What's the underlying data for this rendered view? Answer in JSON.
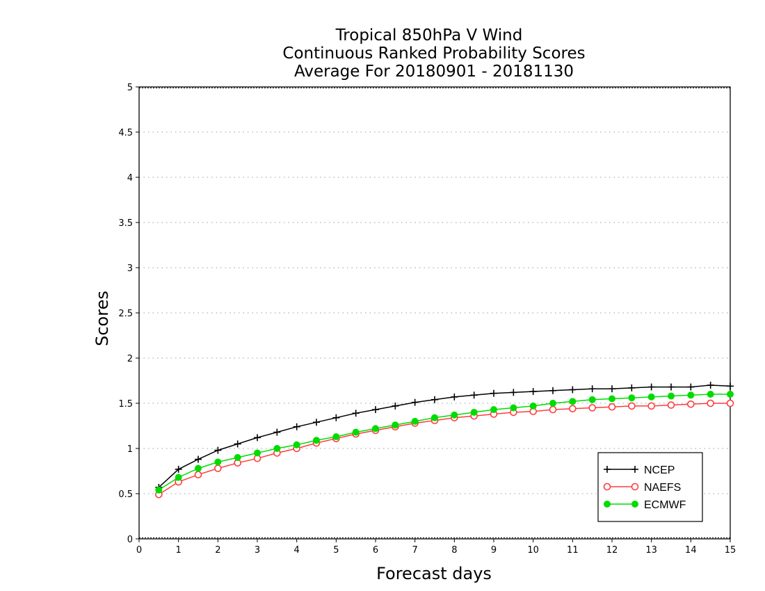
{
  "chart_data": {
    "type": "line",
    "title": [
      "Tropical 850hPa V Wind",
      "Continuous Ranked Probability Scores",
      "Average For 20180901 - 20181130"
    ],
    "xlabel": "Forecast days",
    "ylabel": "Scores",
    "xlim": [
      0,
      15
    ],
    "ylim": [
      0,
      5
    ],
    "x_ticks": [
      "0",
      "1",
      "2",
      "3",
      "4",
      "5",
      "6",
      "7",
      "8",
      "9",
      "10",
      "11",
      "12",
      "13",
      "14",
      "15"
    ],
    "y_ticks": [
      "0",
      "0.5",
      "1",
      "1.5",
      "2",
      "2.5",
      "3",
      "3.5",
      "4",
      "4.5",
      "5"
    ],
    "grid": true,
    "legend_position": "bottom-right",
    "x": [
      0.5,
      1,
      1.5,
      2,
      2.5,
      3,
      3.5,
      4,
      4.5,
      5,
      5.5,
      6,
      6.5,
      7,
      7.5,
      8,
      8.5,
      9,
      9.5,
      10,
      10.5,
      11,
      11.5,
      12,
      12.5,
      13,
      13.5,
      14,
      14.5,
      15
    ],
    "series": [
      {
        "name": "NCEP",
        "color": "#000000",
        "marker": "plus",
        "values": [
          0.57,
          0.77,
          0.88,
          0.98,
          1.05,
          1.12,
          1.18,
          1.24,
          1.29,
          1.34,
          1.39,
          1.43,
          1.47,
          1.51,
          1.54,
          1.57,
          1.59,
          1.61,
          1.62,
          1.63,
          1.64,
          1.65,
          1.66,
          1.66,
          1.67,
          1.68,
          1.68,
          1.68,
          1.7,
          1.69
        ]
      },
      {
        "name": "NAEFS",
        "color": "#ff3b3b",
        "marker": "open-circle",
        "values": [
          0.49,
          0.63,
          0.71,
          0.78,
          0.84,
          0.89,
          0.95,
          1.0,
          1.06,
          1.11,
          1.16,
          1.2,
          1.24,
          1.28,
          1.31,
          1.34,
          1.36,
          1.38,
          1.4,
          1.41,
          1.43,
          1.44,
          1.45,
          1.46,
          1.47,
          1.47,
          1.48,
          1.49,
          1.5,
          1.5
        ]
      },
      {
        "name": "ECMWF",
        "color": "#00dc00",
        "marker": "filled-circle",
        "values": [
          0.54,
          0.68,
          0.78,
          0.85,
          0.9,
          0.95,
          1.0,
          1.04,
          1.09,
          1.13,
          1.18,
          1.22,
          1.26,
          1.3,
          1.34,
          1.37,
          1.4,
          1.43,
          1.45,
          1.47,
          1.5,
          1.52,
          1.54,
          1.55,
          1.56,
          1.57,
          1.58,
          1.59,
          1.6,
          1.6
        ]
      }
    ]
  }
}
